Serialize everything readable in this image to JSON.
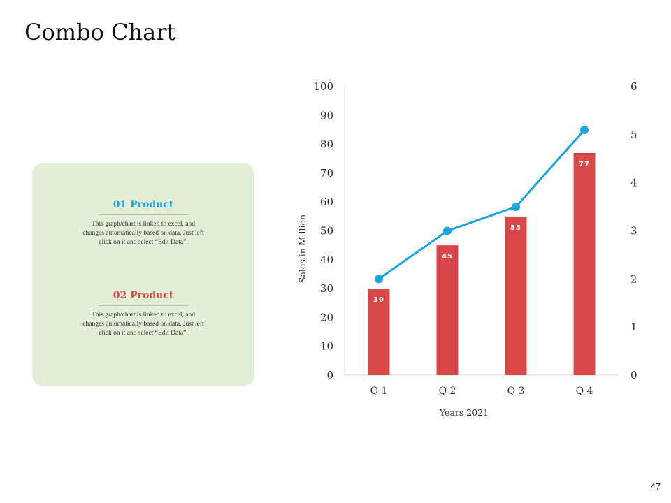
{
  "slide": {
    "title": "Combo Chart",
    "page_number": "47"
  },
  "legend": {
    "items": [
      {
        "title": "01 Product",
        "color": "#1aa3dc",
        "description": "This graph/chart is linked to excel, and changes automatically based on data. Just left click on it and select “Edit Data”."
      },
      {
        "title": "02 Product",
        "color": "#d94848",
        "description": "This graph/chart is linked to excel, and changes automatically based on data. Just left click on it and select “Edit Data”."
      }
    ]
  },
  "chart_data": {
    "type": "bar",
    "title": "",
    "xlabel": "Years 2021",
    "ylabel": "Sales in Million",
    "categories": [
      "Q 1",
      "Q 2",
      "Q 3",
      "Q 4"
    ],
    "ylim": [
      0,
      100
    ],
    "y_ticks": [
      0,
      10,
      20,
      30,
      40,
      50,
      60,
      70,
      80,
      90,
      100
    ],
    "y2lim": [
      0,
      6
    ],
    "y2_ticks": [
      0,
      1,
      2,
      3,
      4,
      5,
      6
    ],
    "grid": false,
    "legend": "none",
    "series": [
      {
        "type": "bar",
        "axis": "left",
        "color": "#d94848",
        "values": [
          30,
          45,
          55,
          77
        ],
        "data_labels": [
          "30",
          "45",
          "55",
          "77"
        ]
      },
      {
        "type": "line",
        "axis": "right",
        "color": "#1aa3dc",
        "values": [
          2.0,
          3.0,
          3.5,
          5.1
        ]
      }
    ]
  }
}
